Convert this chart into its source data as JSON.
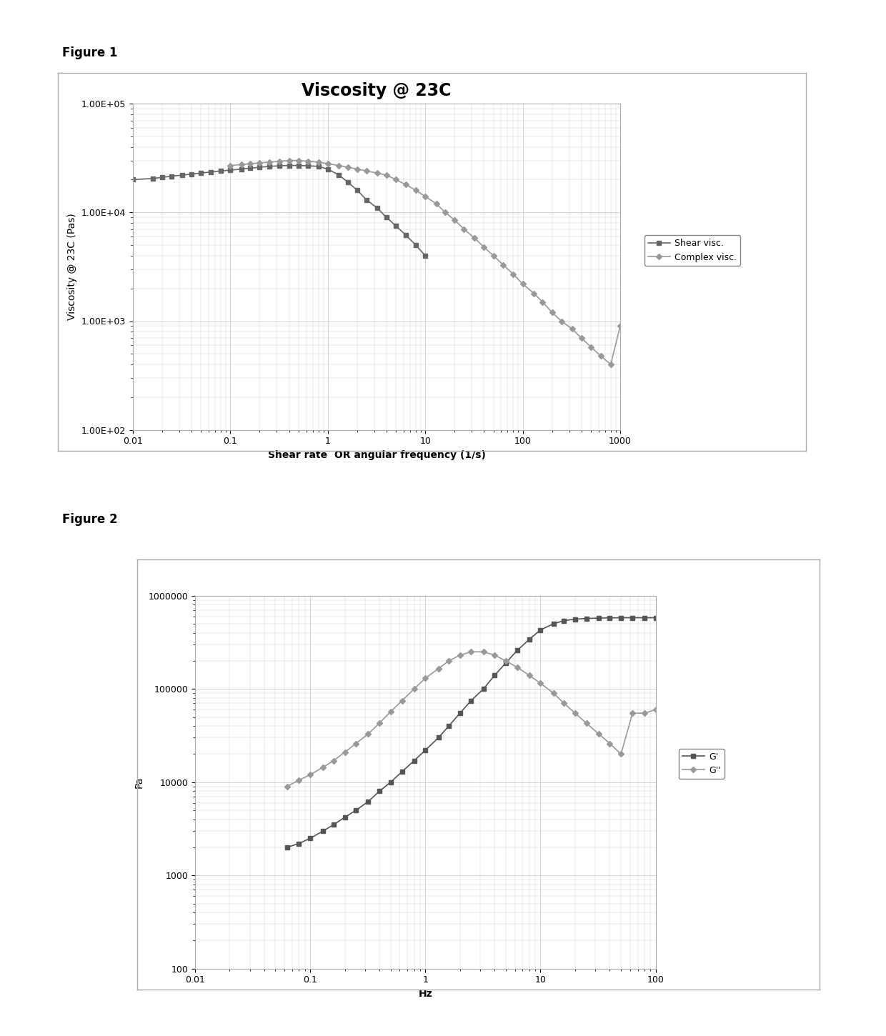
{
  "fig1": {
    "title": "Viscosity @ 23C",
    "xlabel": "Shear rate  OR angular frequency (1/s)",
    "ylabel": "Viscosity @ 23C (Pas)",
    "xlim": [
      0.01,
      1000
    ],
    "ylim": [
      100,
      100000
    ],
    "shear_visc": {
      "x": [
        0.01,
        0.016,
        0.02,
        0.025,
        0.032,
        0.04,
        0.05,
        0.063,
        0.08,
        0.1,
        0.13,
        0.16,
        0.2,
        0.25,
        0.32,
        0.4,
        0.5,
        0.63,
        0.8,
        1.0,
        1.3,
        1.6,
        2.0,
        2.5,
        3.2,
        4.0,
        5.0,
        6.3,
        8.0,
        10.0
      ],
      "y": [
        20000,
        20500,
        21000,
        21500,
        22000,
        22500,
        23000,
        23500,
        24000,
        24500,
        25000,
        25500,
        26000,
        26500,
        26800,
        27000,
        27000,
        26800,
        26500,
        25000,
        22000,
        19000,
        16000,
        13000,
        11000,
        9000,
        7500,
        6200,
        5000,
        4000
      ],
      "color": "#666666",
      "marker": "s",
      "label": "Shear visc.",
      "linewidth": 1.2,
      "markersize": 4
    },
    "complex_visc": {
      "x": [
        0.1,
        0.13,
        0.16,
        0.2,
        0.25,
        0.32,
        0.4,
        0.5,
        0.63,
        0.8,
        1.0,
        1.3,
        1.6,
        2.0,
        2.5,
        3.2,
        4.0,
        5.0,
        6.3,
        8.0,
        10.0,
        13.0,
        16.0,
        20.0,
        25.0,
        32.0,
        40.0,
        50.0,
        63.0,
        80.0,
        100.0,
        130.0,
        160.0,
        200.0,
        250.0,
        320.0,
        400.0,
        500.0,
        630.0,
        800.0,
        1000.0
      ],
      "y": [
        27000,
        27500,
        28000,
        28500,
        29000,
        29500,
        30000,
        30000,
        29500,
        29000,
        28000,
        27000,
        26000,
        25000,
        24000,
        23000,
        22000,
        20000,
        18000,
        16000,
        14000,
        12000,
        10000,
        8500,
        7000,
        5800,
        4800,
        4000,
        3300,
        2700,
        2200,
        1800,
        1500,
        1200,
        1000,
        850,
        700,
        580,
        480,
        400,
        900
      ],
      "color": "#999999",
      "marker": "D",
      "label": "Complex visc.",
      "linewidth": 1.2,
      "markersize": 4
    },
    "grid_color": "#cccccc",
    "bg_color": "#ffffff"
  },
  "fig2": {
    "xlabel": "Hz",
    "ylabel": "Pa",
    "xlim": [
      0.01,
      100
    ],
    "ylim": [
      100,
      1000000
    ],
    "G_prime": {
      "x": [
        0.063,
        0.08,
        0.1,
        0.13,
        0.16,
        0.2,
        0.25,
        0.32,
        0.4,
        0.5,
        0.63,
        0.8,
        1.0,
        1.3,
        1.6,
        2.0,
        2.5,
        3.2,
        4.0,
        5.0,
        6.3,
        8.0,
        10.0,
        13.0,
        16.0,
        20.0,
        25.0,
        32.0,
        40.0,
        50.0,
        63.0,
        80.0,
        100.0
      ],
      "y": [
        2000,
        2200,
        2500,
        3000,
        3500,
        4200,
        5000,
        6200,
        8000,
        10000,
        13000,
        17000,
        22000,
        30000,
        40000,
        55000,
        75000,
        100000,
        140000,
        190000,
        260000,
        340000,
        430000,
        500000,
        540000,
        560000,
        570000,
        575000,
        578000,
        580000,
        580000,
        580000,
        580000
      ],
      "color": "#555555",
      "marker": "s",
      "label": "G'",
      "linewidth": 1.2,
      "markersize": 4
    },
    "G_double_prime": {
      "x": [
        0.063,
        0.08,
        0.1,
        0.13,
        0.16,
        0.2,
        0.25,
        0.32,
        0.4,
        0.5,
        0.63,
        0.8,
        1.0,
        1.3,
        1.6,
        2.0,
        2.5,
        3.2,
        4.0,
        5.0,
        6.3,
        8.0,
        10.0,
        13.0,
        16.0,
        20.0,
        25.0,
        32.0,
        40.0,
        50.0,
        63.0,
        80.0,
        100.0
      ],
      "y": [
        9000,
        10500,
        12000,
        14500,
        17000,
        21000,
        26000,
        33000,
        43000,
        57000,
        75000,
        100000,
        130000,
        165000,
        200000,
        230000,
        250000,
        250000,
        230000,
        200000,
        170000,
        140000,
        115000,
        90000,
        70000,
        55000,
        43000,
        33000,
        26000,
        20000,
        55000,
        55000,
        60000
      ],
      "color": "#999999",
      "marker": "D",
      "label": "G''",
      "linewidth": 1.2,
      "markersize": 4
    },
    "grid_color": "#cccccc",
    "bg_color": "#ffffff"
  },
  "figure1_label": "Figure 1",
  "figure2_label": "Figure 2",
  "label_fontsize": 12,
  "title_fontsize": 17,
  "axis_fontsize": 10,
  "tick_fontsize": 9,
  "legend_fontsize": 9,
  "bg_color": "#ffffff"
}
